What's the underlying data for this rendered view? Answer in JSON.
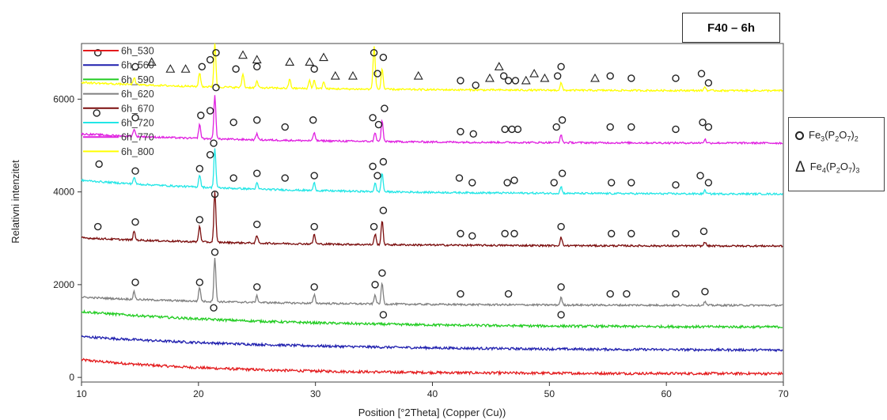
{
  "title": "F40 – 6h",
  "chart_data": {
    "type": "line",
    "xlabel": "Position [°2Theta] (Copper (Cu))",
    "ylabel": "Relativni intenzitet",
    "xlim": [
      10,
      70
    ],
    "ylim": [
      -100,
      7200
    ],
    "xticks": [
      10,
      20,
      30,
      40,
      50,
      60,
      70
    ],
    "yticks": [
      0,
      2000,
      4000,
      6000
    ],
    "legend_position": "top-left",
    "series": [
      {
        "name": "6h_530",
        "color": "#e31a1c",
        "kind": "amorphous",
        "start": 380,
        "end": 80,
        "decay": 12,
        "noise": 28
      },
      {
        "name": "6h_560",
        "color": "#1f1fae",
        "kind": "amorphous",
        "start": 880,
        "end": 580,
        "decay": 18,
        "noise": 26
      },
      {
        "name": "6h_590",
        "color": "#22cc22",
        "kind": "amorphous",
        "start": 1420,
        "end": 1080,
        "decay": 16,
        "noise": 26
      },
      {
        "name": "6h_620",
        "color": "#7f7f7f",
        "kind": "crystalline",
        "base": 1550,
        "drift": 180,
        "scale": 1.0
      },
      {
        "name": "6h_670",
        "color": "#7b0d0d",
        "kind": "crystalline",
        "base": 2830,
        "drift": 180,
        "scale": 1.15
      },
      {
        "name": "6h_720",
        "color": "#22e6e6",
        "kind": "crystalline",
        "base": 3950,
        "drift": 300,
        "scale": 0.9
      },
      {
        "name": "6h_770",
        "color": "#e020e0",
        "kind": "crystalline",
        "base": 5050,
        "drift": 200,
        "scale": 1.0
      },
      {
        "name": "6h_800",
        "color": "#ffff00",
        "kind": "crystalline",
        "base": 6180,
        "drift": 180,
        "scale": 1.0
      }
    ],
    "peaks": [
      {
        "x": 14.5,
        "h": 160
      },
      {
        "x": 20.1,
        "h": 300
      },
      {
        "x": 21.4,
        "h": 950
      },
      {
        "x": 25.0,
        "h": 140
      },
      {
        "x": 29.9,
        "h": 180
      },
      {
        "x": 35.1,
        "h": 200
      },
      {
        "x": 35.7,
        "h": 450
      },
      {
        "x": 51.0,
        "h": 160
      },
      {
        "x": 63.3,
        "h": 80
      }
    ],
    "extra_peaks_800": [
      {
        "x": 23.8,
        "h": 300
      },
      {
        "x": 27.8,
        "h": 200
      },
      {
        "x": 29.5,
        "h": 180
      },
      {
        "x": 30.7,
        "h": 150
      },
      {
        "x": 35.0,
        "h": 800
      }
    ],
    "circle_markers": [
      {
        "x": 11.4,
        "y": 7000
      },
      {
        "x": 14.6,
        "y": 6700
      },
      {
        "x": 20.3,
        "y": 6700
      },
      {
        "x": 21.0,
        "y": 6850
      },
      {
        "x": 21.5,
        "y": 7000
      },
      {
        "x": 23.2,
        "y": 6650
      },
      {
        "x": 25.0,
        "y": 6700
      },
      {
        "x": 29.9,
        "y": 6650
      },
      {
        "x": 35.0,
        "y": 7000
      },
      {
        "x": 35.3,
        "y": 6550
      },
      {
        "x": 35.8,
        "y": 6900
      },
      {
        "x": 42.4,
        "y": 6400
      },
      {
        "x": 43.7,
        "y": 6300
      },
      {
        "x": 46.1,
        "y": 6500
      },
      {
        "x": 46.5,
        "y": 6400
      },
      {
        "x": 47.1,
        "y": 6400
      },
      {
        "x": 50.7,
        "y": 6500
      },
      {
        "x": 51.0,
        "y": 6700
      },
      {
        "x": 55.2,
        "y": 6500
      },
      {
        "x": 57.0,
        "y": 6450
      },
      {
        "x": 60.8,
        "y": 6450
      },
      {
        "x": 63.0,
        "y": 6550
      },
      {
        "x": 63.6,
        "y": 6350
      },
      {
        "x": 11.3,
        "y": 5700
      },
      {
        "x": 14.6,
        "y": 5600
      },
      {
        "x": 20.2,
        "y": 5650
      },
      {
        "x": 21.0,
        "y": 5750
      },
      {
        "x": 21.5,
        "y": 6250
      },
      {
        "x": 23.0,
        "y": 5500
      },
      {
        "x": 25.0,
        "y": 5550
      },
      {
        "x": 27.4,
        "y": 5400
      },
      {
        "x": 29.8,
        "y": 5550
      },
      {
        "x": 34.9,
        "y": 5600
      },
      {
        "x": 35.4,
        "y": 5450
      },
      {
        "x": 35.9,
        "y": 5800
      },
      {
        "x": 42.4,
        "y": 5300
      },
      {
        "x": 43.5,
        "y": 5250
      },
      {
        "x": 46.2,
        "y": 5350
      },
      {
        "x": 46.8,
        "y": 5350
      },
      {
        "x": 47.3,
        "y": 5350
      },
      {
        "x": 50.6,
        "y": 5400
      },
      {
        "x": 51.1,
        "y": 5550
      },
      {
        "x": 55.2,
        "y": 5400
      },
      {
        "x": 57.0,
        "y": 5400
      },
      {
        "x": 60.8,
        "y": 5350
      },
      {
        "x": 63.1,
        "y": 5500
      },
      {
        "x": 63.6,
        "y": 5400
      },
      {
        "x": 11.5,
        "y": 4600
      },
      {
        "x": 14.6,
        "y": 4450
      },
      {
        "x": 20.1,
        "y": 4500
      },
      {
        "x": 21.0,
        "y": 4800
      },
      {
        "x": 21.3,
        "y": 5050
      },
      {
        "x": 23.0,
        "y": 4300
      },
      {
        "x": 25.0,
        "y": 4400
      },
      {
        "x": 27.4,
        "y": 4300
      },
      {
        "x": 29.9,
        "y": 4350
      },
      {
        "x": 34.9,
        "y": 4550
      },
      {
        "x": 35.3,
        "y": 4350
      },
      {
        "x": 35.8,
        "y": 4650
      },
      {
        "x": 42.3,
        "y": 4300
      },
      {
        "x": 43.4,
        "y": 4200
      },
      {
        "x": 46.4,
        "y": 4200
      },
      {
        "x": 47.0,
        "y": 4250
      },
      {
        "x": 50.4,
        "y": 4200
      },
      {
        "x": 51.1,
        "y": 4400
      },
      {
        "x": 55.3,
        "y": 4200
      },
      {
        "x": 57.0,
        "y": 4200
      },
      {
        "x": 60.8,
        "y": 4150
      },
      {
        "x": 62.9,
        "y": 4350
      },
      {
        "x": 63.6,
        "y": 4200
      },
      {
        "x": 11.4,
        "y": 3250
      },
      {
        "x": 14.6,
        "y": 3350
      },
      {
        "x": 20.1,
        "y": 3400
      },
      {
        "x": 21.4,
        "y": 3950
      },
      {
        "x": 25.0,
        "y": 3300
      },
      {
        "x": 29.9,
        "y": 3250
      },
      {
        "x": 35.0,
        "y": 3250
      },
      {
        "x": 35.8,
        "y": 3600
      },
      {
        "x": 42.4,
        "y": 3100
      },
      {
        "x": 43.4,
        "y": 3050
      },
      {
        "x": 46.2,
        "y": 3100
      },
      {
        "x": 47.0,
        "y": 3100
      },
      {
        "x": 51.0,
        "y": 3250
      },
      {
        "x": 55.3,
        "y": 3100
      },
      {
        "x": 57.0,
        "y": 3100
      },
      {
        "x": 60.8,
        "y": 3100
      },
      {
        "x": 63.2,
        "y": 3150
      },
      {
        "x": 14.6,
        "y": 2050
      },
      {
        "x": 20.1,
        "y": 2050
      },
      {
        "x": 21.4,
        "y": 2700
      },
      {
        "x": 25.0,
        "y": 1950
      },
      {
        "x": 29.9,
        "y": 1950
      },
      {
        "x": 35.1,
        "y": 2000
      },
      {
        "x": 35.7,
        "y": 2250
      },
      {
        "x": 42.4,
        "y": 1800
      },
      {
        "x": 46.5,
        "y": 1800
      },
      {
        "x": 51.0,
        "y": 1950
      },
      {
        "x": 55.2,
        "y": 1800
      },
      {
        "x": 56.6,
        "y": 1800
      },
      {
        "x": 60.8,
        "y": 1800
      },
      {
        "x": 63.3,
        "y": 1850
      },
      {
        "x": 21.3,
        "y": 1500
      },
      {
        "x": 35.8,
        "y": 1350
      },
      {
        "x": 51.0,
        "y": 1350
      }
    ],
    "triangle_markers": [
      {
        "x": 16.0,
        "y": 6800
      },
      {
        "x": 17.6,
        "y": 6650
      },
      {
        "x": 18.9,
        "y": 6650
      },
      {
        "x": 23.8,
        "y": 6950
      },
      {
        "x": 25.0,
        "y": 6850
      },
      {
        "x": 27.8,
        "y": 6800
      },
      {
        "x": 29.5,
        "y": 6800
      },
      {
        "x": 30.7,
        "y": 6900
      },
      {
        "x": 31.7,
        "y": 6500
      },
      {
        "x": 33.2,
        "y": 6500
      },
      {
        "x": 38.8,
        "y": 6500
      },
      {
        "x": 44.9,
        "y": 6450
      },
      {
        "x": 45.7,
        "y": 6700
      },
      {
        "x": 48.0,
        "y": 6400
      },
      {
        "x": 48.7,
        "y": 6550
      },
      {
        "x": 49.6,
        "y": 6450
      },
      {
        "x": 53.9,
        "y": 6450
      }
    ]
  },
  "phase_legend": [
    {
      "symbol": "circle-icon",
      "formula": "Fe",
      "sub1": "3",
      "paren": "(P",
      "sub2": "2",
      "o": "O",
      "sub3": "7",
      "close": ")",
      "sub4": "2"
    },
    {
      "symbol": "triangle-icon",
      "formula": "Fe",
      "sub1": "4",
      "paren": "(P",
      "sub2": "2",
      "o": "O",
      "sub3": "7",
      "close": ")",
      "sub4": "3"
    }
  ]
}
